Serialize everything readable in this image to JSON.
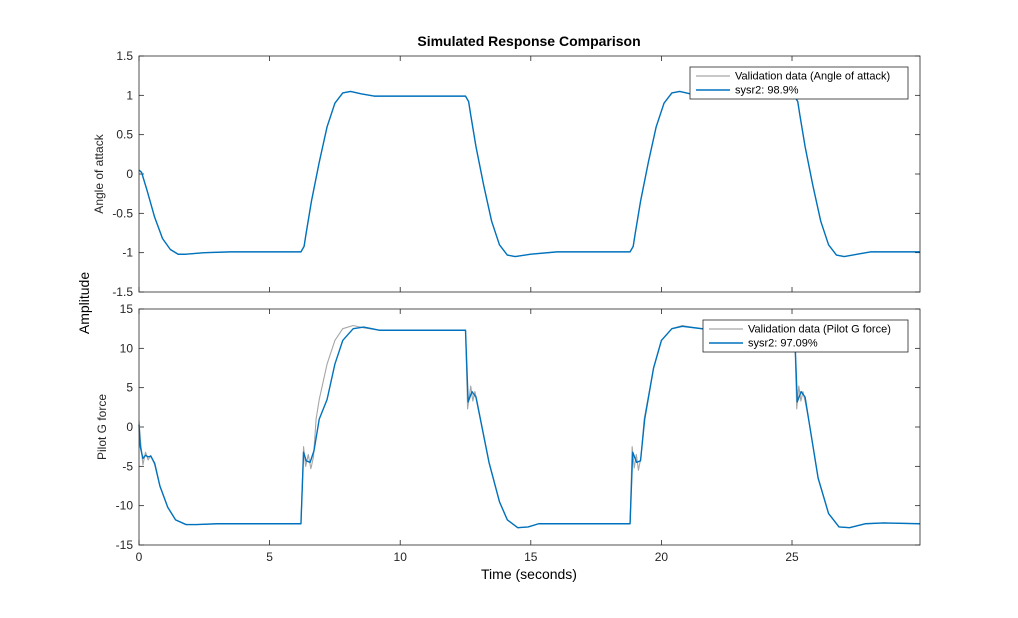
{
  "chart_data": {
    "title": "Simulated Response Comparison",
    "common_ylabel": "Amplitude",
    "xlabel": "Time (seconds)",
    "xlim": [
      0,
      29.9
    ],
    "xticks": [
      0,
      5,
      10,
      15,
      20,
      25
    ],
    "x_tick_labels": [
      "0",
      "5",
      "10",
      "15",
      "20",
      "25"
    ],
    "colors": {
      "validation": "#a6a6a6",
      "model": "#0072bd",
      "axis": "#262626"
    },
    "subplots": [
      {
        "type": "line",
        "ylabel": "Angle of attack",
        "ylim": [
          -1.5,
          1.5
        ],
        "yticks": [
          -1.5,
          -1,
          -0.5,
          0,
          0.5,
          1,
          1.5
        ],
        "y_tick_labels": [
          "-1.5",
          "-1",
          "-0.5",
          "0",
          "0.5",
          "1",
          "1.5"
        ],
        "legend": [
          "Validation data (Angle of attack)",
          "sysr2: 98.9%"
        ],
        "legend_location": "top-right",
        "series": [
          {
            "name": "Validation data (Angle of attack)",
            "x": [
              0,
              0.1,
              0.3,
              0.6,
              0.9,
              1.2,
              1.5,
              1.8,
              2.5,
              3.5,
              5,
              6.2,
              6.32,
              6.4,
              6.6,
              6.9,
              7.2,
              7.5,
              7.8,
              8.1,
              8.5,
              9,
              10,
              11,
              12.5,
              12.62,
              12.7,
              12.9,
              13.2,
              13.5,
              13.8,
              14.1,
              14.4,
              15,
              16,
              17,
              18.8,
              18.92,
              19,
              19.2,
              19.5,
              19.8,
              20.1,
              20.4,
              20.7,
              21.1,
              21.6,
              22.5,
              24,
              25.1,
              25.22,
              25.3,
              25.5,
              25.8,
              26.1,
              26.4,
              26.7,
              27,
              27.5,
              28,
              29,
              29.9
            ],
            "y": [
              0.05,
              0.02,
              -0.2,
              -0.55,
              -0.82,
              -0.96,
              -1.02,
              -1.02,
              -1.0,
              -0.99,
              -0.99,
              -0.99,
              -0.92,
              -0.75,
              -0.35,
              0.15,
              0.6,
              0.9,
              1.03,
              1.05,
              1.02,
              0.99,
              0.99,
              0.99,
              0.99,
              0.92,
              0.75,
              0.35,
              -0.15,
              -0.6,
              -0.9,
              -1.03,
              -1.05,
              -1.02,
              -0.99,
              -0.99,
              -0.99,
              -0.92,
              -0.75,
              -0.35,
              0.15,
              0.6,
              0.9,
              1.03,
              1.05,
              1.02,
              0.99,
              0.99,
              0.99,
              0.99,
              0.92,
              0.75,
              0.35,
              -0.15,
              -0.6,
              -0.9,
              -1.03,
              -1.05,
              -1.02,
              -0.99,
              -0.99,
              -0.99
            ]
          },
          {
            "name": "sysr2: 98.9%",
            "x": [
              0,
              0.1,
              0.3,
              0.6,
              0.9,
              1.2,
              1.5,
              1.8,
              2.5,
              3.5,
              5,
              6.2,
              6.32,
              6.4,
              6.6,
              6.9,
              7.2,
              7.5,
              7.8,
              8.1,
              8.5,
              9,
              10,
              11,
              12.5,
              12.62,
              12.7,
              12.9,
              13.2,
              13.5,
              13.8,
              14.1,
              14.4,
              15,
              16,
              17,
              18.8,
              18.92,
              19,
              19.2,
              19.5,
              19.8,
              20.1,
              20.4,
              20.7,
              21.1,
              21.6,
              22.5,
              24,
              25.1,
              25.22,
              25.3,
              25.5,
              25.8,
              26.1,
              26.4,
              26.7,
              27,
              27.5,
              28,
              29,
              29.9
            ],
            "y": [
              0.05,
              0.02,
              -0.2,
              -0.55,
              -0.82,
              -0.96,
              -1.02,
              -1.02,
              -1.0,
              -0.99,
              -0.99,
              -0.99,
              -0.92,
              -0.75,
              -0.35,
              0.15,
              0.6,
              0.9,
              1.03,
              1.05,
              1.02,
              0.99,
              0.99,
              0.99,
              0.99,
              0.92,
              0.75,
              0.35,
              -0.15,
              -0.6,
              -0.9,
              -1.03,
              -1.05,
              -1.02,
              -0.99,
              -0.99,
              -0.99,
              -0.92,
              -0.75,
              -0.35,
              0.15,
              0.6,
              0.9,
              1.03,
              1.05,
              1.02,
              0.99,
              0.99,
              0.99,
              0.99,
              0.92,
              0.75,
              0.35,
              -0.15,
              -0.6,
              -0.9,
              -1.03,
              -1.05,
              -1.02,
              -0.99,
              -0.99,
              -0.99
            ]
          }
        ]
      },
      {
        "type": "line",
        "ylabel": "Pilot G force",
        "ylim": [
          -15,
          15
        ],
        "yticks": [
          -15,
          -10,
          -5,
          0,
          5,
          10,
          15
        ],
        "y_tick_labels": [
          "-15",
          "-10",
          "-5",
          "0",
          "5",
          "10",
          "15"
        ],
        "legend": [
          "Validation data (Pilot G force)",
          "sysr2: 97.09%"
        ],
        "legend_location": "top-right",
        "series": [
          {
            "name": "Validation data (Pilot G force)",
            "x": [
              0,
              0.05,
              0.15,
              0.25,
              0.35,
              0.45,
              0.6,
              0.8,
              1.1,
              1.4,
              1.8,
              2.2,
              3,
              4,
              5,
              6.2,
              6.3,
              6.38,
              6.48,
              6.58,
              6.68,
              6.78,
              6.9,
              7.2,
              7.5,
              7.8,
              8.2,
              8.6,
              9.2,
              10,
              11,
              12.5,
              12.58,
              12.7,
              12.78,
              12.86,
              12.96,
              13.1,
              13.4,
              13.8,
              14.1,
              14.5,
              14.9,
              15.3,
              16,
              17,
              18.8,
              18.88,
              18.96,
              19.04,
              19.12,
              19.22,
              19.34,
              19.7,
              20,
              20.4,
              20.8,
              21.3,
              22,
              23,
              25.1,
              25.18,
              25.26,
              25.34,
              25.42,
              25.52,
              25.66,
              26,
              26.4,
              26.8,
              27.2,
              27.8,
              28.5,
              29.9
            ],
            "y": [
              0.8,
              -1.5,
              -4.8,
              -3.2,
              -4.2,
              -3.6,
              -4.8,
              -7.5,
              -10.2,
              -11.8,
              -12.4,
              -12.4,
              -12.3,
              -12.3,
              -12.3,
              -12.3,
              -2.5,
              -5.0,
              -3.5,
              -5.3,
              -3.8,
              1.0,
              3.5,
              8.0,
              11.0,
              12.5,
              12.9,
              12.6,
              12.3,
              12.3,
              12.3,
              12.3,
              2.3,
              5.2,
              3.3,
              4.5,
              3.0,
              0.5,
              -4.5,
              -9.5,
              -11.8,
              -12.8,
              -12.7,
              -12.3,
              -12.3,
              -12.3,
              -12.3,
              -2.5,
              -5.2,
              -3.5,
              -5.5,
              -3.8,
              1.0,
              7.5,
              11.0,
              12.5,
              12.9,
              12.6,
              12.3,
              12.3,
              12.3,
              2.3,
              5.2,
              3.3,
              4.5,
              3.0,
              0.5,
              -6.5,
              -11.0,
              -12.7,
              -12.8,
              -12.3,
              -12.2,
              -12.3
            ]
          },
          {
            "name": "sysr2: 97.09%",
            "x": [
              0,
              0.05,
              0.15,
              0.25,
              0.35,
              0.45,
              0.6,
              0.8,
              1.1,
              1.4,
              1.8,
              2.2,
              3,
              4,
              5,
              6.2,
              6.3,
              6.4,
              6.55,
              6.7,
              6.9,
              7.2,
              7.5,
              7.8,
              8.2,
              8.6,
              9.2,
              10,
              11,
              12.5,
              12.6,
              12.75,
              12.9,
              13.1,
              13.4,
              13.8,
              14.1,
              14.5,
              14.9,
              15.3,
              16,
              17,
              18.8,
              18.9,
              19.05,
              19.2,
              19.36,
              19.7,
              20,
              20.4,
              20.8,
              21.3,
              22,
              23,
              25.1,
              25.2,
              25.35,
              25.5,
              25.66,
              26,
              26.4,
              26.8,
              27.2,
              27.8,
              28.5,
              29.9
            ],
            "y": [
              0.3,
              -2.5,
              -4.0,
              -3.6,
              -3.8,
              -3.7,
              -4.6,
              -7.5,
              -10.2,
              -11.8,
              -12.4,
              -12.4,
              -12.3,
              -12.3,
              -12.3,
              -12.3,
              -3.2,
              -4.3,
              -4.5,
              -3.0,
              1.0,
              3.5,
              8.0,
              11.0,
              12.5,
              12.7,
              12.3,
              12.3,
              12.3,
              12.3,
              3.2,
              4.5,
              3.8,
              0.5,
              -4.5,
              -9.5,
              -11.8,
              -12.8,
              -12.7,
              -12.3,
              -12.3,
              -12.3,
              -12.3,
              -3.2,
              -4.5,
              -4.3,
              1.0,
              7.5,
              11.0,
              12.5,
              12.8,
              12.6,
              12.3,
              12.3,
              12.3,
              3.2,
              4.5,
              3.8,
              0.5,
              -6.5,
              -11.0,
              -12.7,
              -12.8,
              -12.3,
              -12.2,
              -12.3
            ]
          }
        ]
      }
    ]
  }
}
